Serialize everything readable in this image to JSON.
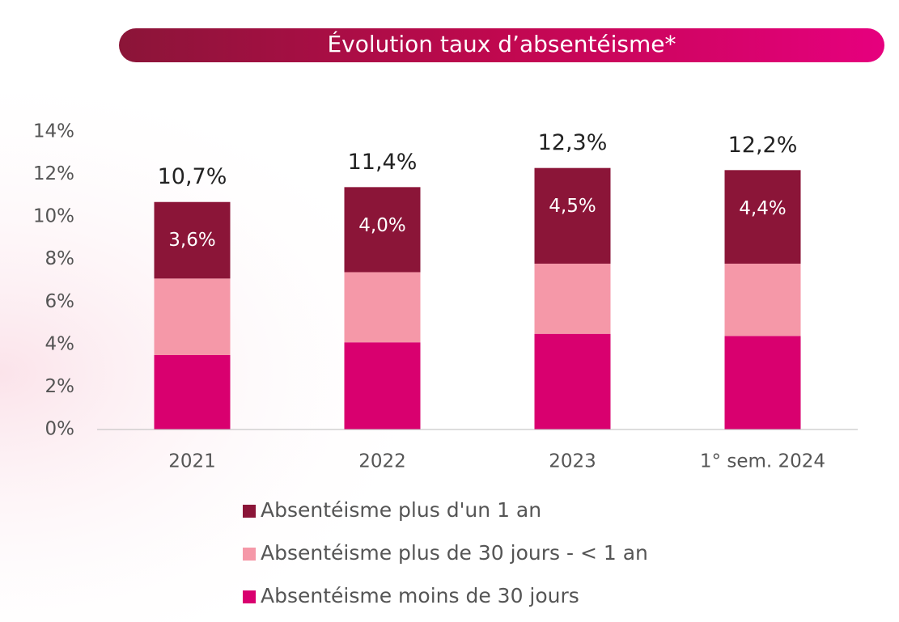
{
  "chart_data": {
    "type": "stacked_bar",
    "title": "Évolution taux d’absentéisme*",
    "categories": [
      "2021",
      "2022",
      "2023",
      "1° sem. 2024"
    ],
    "series": [
      {
        "name": "Absentéisme plus d'un 1 an",
        "color": "#8b1538",
        "values": [
          3.6,
          4.0,
          4.5,
          4.4
        ],
        "value_labels": [
          "3,6%",
          "4,0%",
          "4,5%",
          "4,4%"
        ]
      },
      {
        "name": "Absentéisme plus de 30 jours - < 1 an",
        "color": "#f598a8",
        "values": [
          3.6,
          3.3,
          3.3,
          3.4
        ]
      },
      {
        "name": "Absentéisme moins de 30 jours",
        "color": "#d9006f",
        "values": [
          3.5,
          4.1,
          4.5,
          4.4
        ]
      }
    ],
    "totals": [
      10.7,
      11.4,
      12.3,
      12.2
    ],
    "total_labels": [
      "10,7%",
      "11,4%",
      "12,3%",
      "12,2%"
    ],
    "ylim": [
      0,
      14
    ],
    "yticks": [
      {
        "value": 0,
        "label": "0%"
      },
      {
        "value": 2,
        "label": "2%"
      },
      {
        "value": 4,
        "label": "4%"
      },
      {
        "value": 6,
        "label": "6%"
      },
      {
        "value": 8,
        "label": "8%"
      },
      {
        "value": 10,
        "label": "10%"
      },
      {
        "value": 12,
        "label": "12%"
      },
      {
        "value": 14,
        "label": "14%"
      }
    ]
  }
}
